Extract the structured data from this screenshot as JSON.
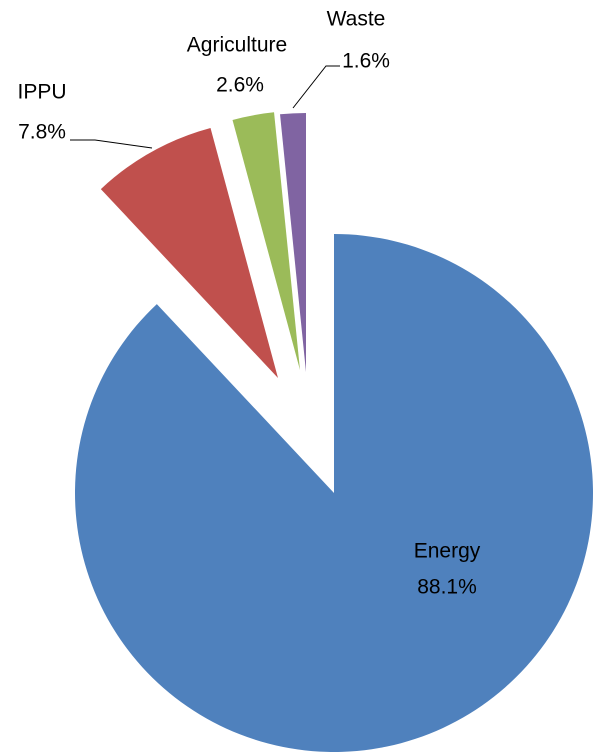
{
  "chart_data": {
    "type": "pie",
    "categories": [
      "Energy",
      "IPPU",
      "Agriculture",
      "Waste"
    ],
    "values": [
      88.1,
      7.8,
      2.6,
      1.6
    ],
    "value_labels": [
      "88.1%",
      "7.8%",
      "2.6%",
      "1.6%"
    ],
    "colors": [
      "#4f81bd",
      "#c0504d",
      "#9bbb59",
      "#8064a2"
    ]
  }
}
